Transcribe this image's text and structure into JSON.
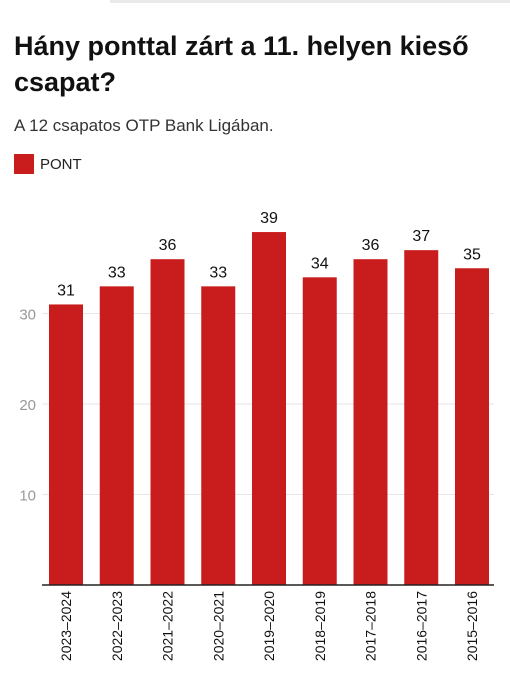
{
  "title": "Hány ponttal zárt a 11. helyen kieső csapat?",
  "subtitle": "A 12 csapatos OTP Bank Ligában.",
  "colors": {
    "bar": "#c91d1d",
    "grid": "#e6e6e6",
    "axis": "#222222",
    "tick_text": "#999999",
    "text": "#111111"
  },
  "chart_data": {
    "type": "bar",
    "categories": [
      "2023–2024",
      "2022–2023",
      "2021–2022",
      "2020–2021",
      "2019–2020",
      "2018–2019",
      "2017–2018",
      "2016–2017",
      "2015–2016"
    ],
    "series": [
      {
        "name": "PONT",
        "values": [
          31,
          33,
          36,
          33,
          39,
          34,
          36,
          37,
          35
        ]
      }
    ],
    "yticks": [
      10,
      20,
      30
    ],
    "ylim": [
      0,
      41
    ],
    "xlabel": "",
    "ylabel": "",
    "grid": true,
    "data_labels": true,
    "legend_position": "top-left"
  }
}
